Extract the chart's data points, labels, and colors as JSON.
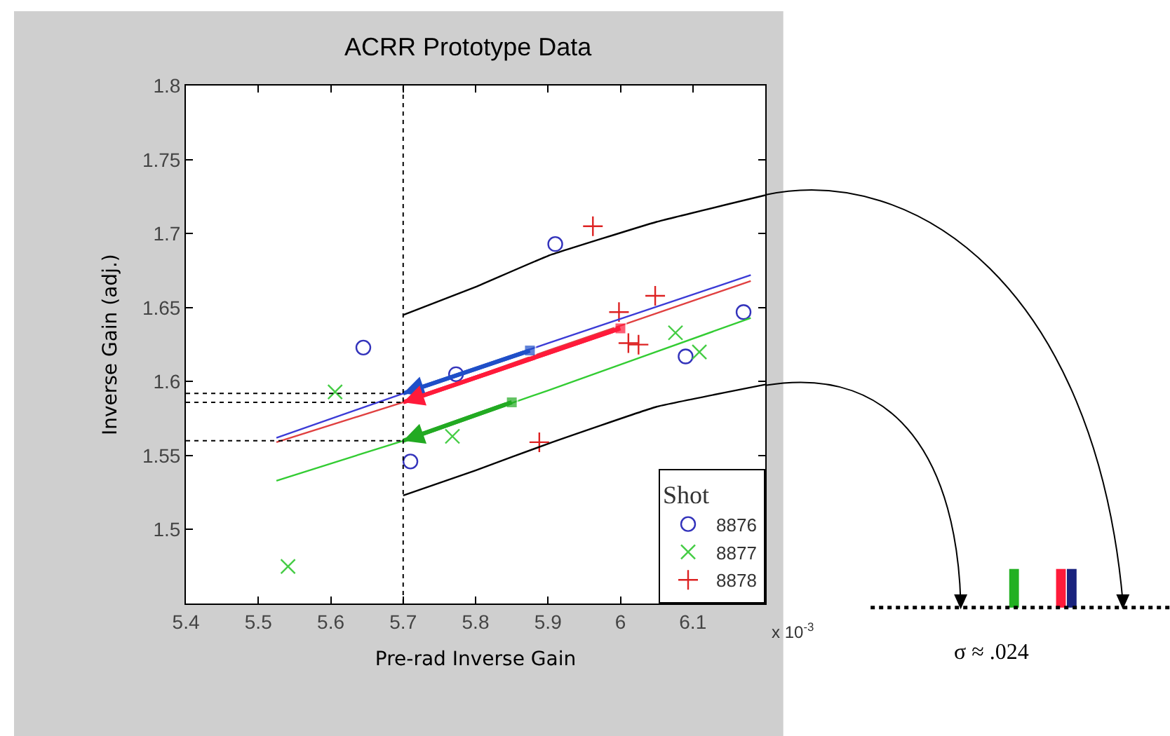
{
  "chart_data": {
    "type": "scatter",
    "title": "ACRR Prototype Data",
    "xlabel": "Pre-rad Inverse Gain",
    "ylabel": "Inverse Gain (adj.)",
    "legend_title": "Shot",
    "xlim": [
      5.4,
      6.2
    ],
    "ylim": [
      1.45,
      1.8
    ],
    "xticks": [
      5.4,
      5.5,
      5.6,
      5.7,
      5.8,
      5.9,
      6,
      6.1
    ],
    "yticks": [
      1.5,
      1.55,
      1.6,
      1.65,
      1.7,
      1.75,
      1.8
    ],
    "legend": "bottom right",
    "annotations": [
      "x 10$^{-3}$",
      "σ ≈ .024"
    ],
    "ref_lines": [
      {
        "axis": "x",
        "value": 5.7,
        "label": null,
        "color": "#000000",
        "line_style": "dotted"
      },
      {
        "axis": "y",
        "value": 1.592,
        "label": null,
        "color": "#000000",
        "line_style": "dotted"
      },
      {
        "axis": "y",
        "value": 1.586,
        "label": null,
        "color": "#000000",
        "line_style": "dotted"
      },
      {
        "axis": "y",
        "value": 1.56,
        "label": null,
        "color": "#000000",
        "line_style": "dotted"
      }
    ],
    "series": [
      {
        "name": "8876",
        "marker": "circle",
        "color": "#3333bb",
        "x": [
          5.645,
          5.91,
          5.773,
          5.71,
          6.09,
          6.17
        ],
        "values": [
          1.623,
          1.693,
          1.605,
          1.546,
          1.617,
          1.647
        ]
      },
      {
        "name": "8877",
        "marker": "x",
        "color": "#44cc44",
        "x": [
          5.606,
          5.541,
          5.768,
          6.076,
          6.109
        ],
        "values": [
          1.593,
          1.475,
          1.563,
          1.633,
          1.62
        ]
      },
      {
        "name": "8878",
        "marker": "cross",
        "color": "#dd2222",
        "x": [
          5.962,
          5.998,
          6.048,
          6.011,
          6.025,
          5.888
        ],
        "values": [
          1.705,
          1.647,
          1.658,
          1.626,
          1.625,
          1.559
        ]
      },
      {
        "type": "line",
        "color": "#3b3bd6",
        "x": [
          5.525,
          5.7,
          5.9,
          6.18
        ],
        "values": [
          1.562,
          1.592,
          1.626,
          1.672
        ]
      },
      {
        "type": "line",
        "color": "#e04040",
        "x": [
          5.525,
          5.7,
          5.9,
          6.18
        ],
        "values": [
          1.559,
          1.586,
          1.621,
          1.668
        ]
      },
      {
        "type": "line",
        "color": "#33cc33",
        "x": [
          5.525,
          5.7,
          5.9,
          6.18
        ],
        "values": [
          1.533,
          1.56,
          1.594,
          1.643
        ]
      },
      {
        "type": "line",
        "color": "#000000",
        "x": [
          5.7,
          5.8,
          5.9,
          6.05,
          6.2
        ],
        "values": [
          1.645,
          1.664,
          1.685,
          1.708,
          1.726
        ]
      },
      {
        "type": "line",
        "color": "#000000",
        "x": [
          5.7,
          5.8,
          5.9,
          6.05,
          6.2
        ],
        "values": [
          1.523,
          1.54,
          1.558,
          1.583,
          1.598
        ]
      },
      {
        "type": "line",
        "color": "#1f4fc8",
        "marker": "square",
        "x": [
          5.875,
          5.7
        ],
        "values": [
          1.621,
          1.592
        ]
      },
      {
        "type": "line",
        "color": "#ff1a3a",
        "marker": "square",
        "x": [
          6.0,
          5.7
        ],
        "values": [
          1.636,
          1.586
        ]
      },
      {
        "type": "line",
        "color": "#22aa22",
        "marker": "square",
        "x": [
          5.85,
          5.7
        ],
        "values": [
          1.586,
          1.56
        ]
      }
    ]
  }
}
